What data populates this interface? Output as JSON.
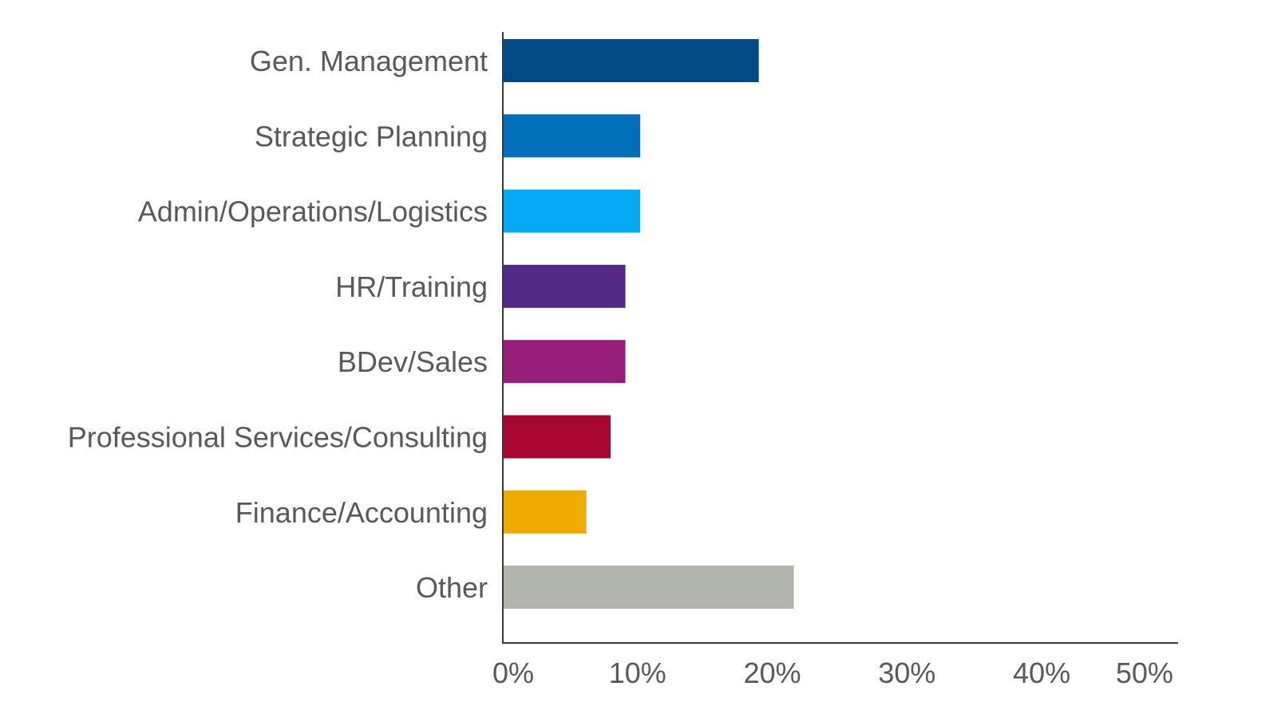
{
  "chart_data": {
    "type": "bar",
    "orientation": "horizontal",
    "title": "",
    "xlabel": "",
    "ylabel": "",
    "categories": [
      "Gen. Management",
      "Strategic Planning",
      "Admin/Operations/Logistics",
      "HR/Training",
      "BDev/Sales",
      "Professional Services/Consulting",
      "Finance/Accounting",
      "Other"
    ],
    "values": [
      19,
      10.2,
      10.2,
      9.1,
      9.1,
      8,
      6.2,
      21.6
    ],
    "colors": [
      "#004a87",
      "#006eb8",
      "#05a9f4",
      "#532a85",
      "#961f7c",
      "#a6062f",
      "#eeac00",
      "#b1b5ae"
    ],
    "xlim": [
      0,
      50
    ],
    "xticks": [
      {
        "value": 0,
        "label": "0%"
      },
      {
        "value": 10,
        "label": "10%"
      },
      {
        "value": 20,
        "label": "20%"
      },
      {
        "value": 30,
        "label": "30%"
      },
      {
        "value": 40,
        "label": "40%"
      },
      {
        "value": 50,
        "label": "50%"
      }
    ],
    "grid": false,
    "legend": "none",
    "axis_color": "#3a3a3a",
    "text_color": "#58595b"
  }
}
